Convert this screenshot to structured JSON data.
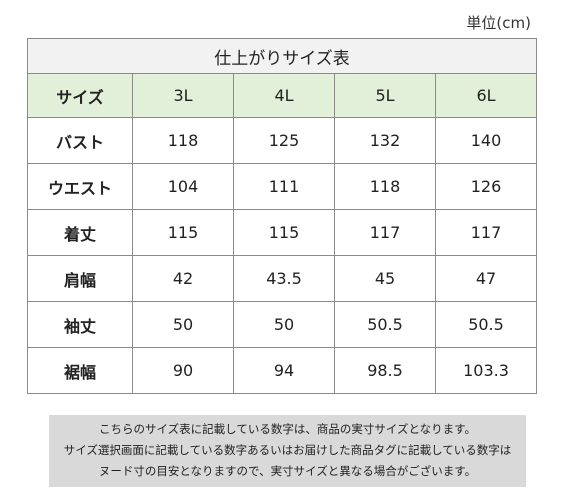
{
  "unit_label": "単位(cm)",
  "table": {
    "title": "仕上がりサイズ表",
    "corner_label": "サイズ",
    "sizes": [
      "3L",
      "4L",
      "5L",
      "6L"
    ],
    "rows": [
      {
        "label": "バスト",
        "values": [
          "118",
          "125",
          "132",
          "140"
        ]
      },
      {
        "label": "ウエスト",
        "values": [
          "104",
          "111",
          "118",
          "126"
        ]
      },
      {
        "label": "着丈",
        "values": [
          "115",
          "115",
          "117",
          "117"
        ]
      },
      {
        "label": "肩幅",
        "values": [
          "42",
          "43.5",
          "45",
          "47"
        ]
      },
      {
        "label": "袖丈",
        "values": [
          "50",
          "50",
          "50.5",
          "50.5"
        ]
      },
      {
        "label": "裾幅",
        "values": [
          "90",
          "94",
          "98.5",
          "103.3"
        ]
      }
    ]
  },
  "notice": {
    "lines": [
      "こちらのサイズ表に記載している数字は、商品の実寸サイズとなります。",
      "サイズ選択画面に記載している数字あるいはお届けした商品タグに記載している数字は",
      "ヌード寸の目安となりますので、実寸サイズと異なる場合がございます。"
    ]
  },
  "colors": {
    "header_bg": "#e2efd9",
    "title_bg": "#f2f2f2",
    "notice_bg": "#d9d9d9",
    "border": "#8a8a8a"
  }
}
